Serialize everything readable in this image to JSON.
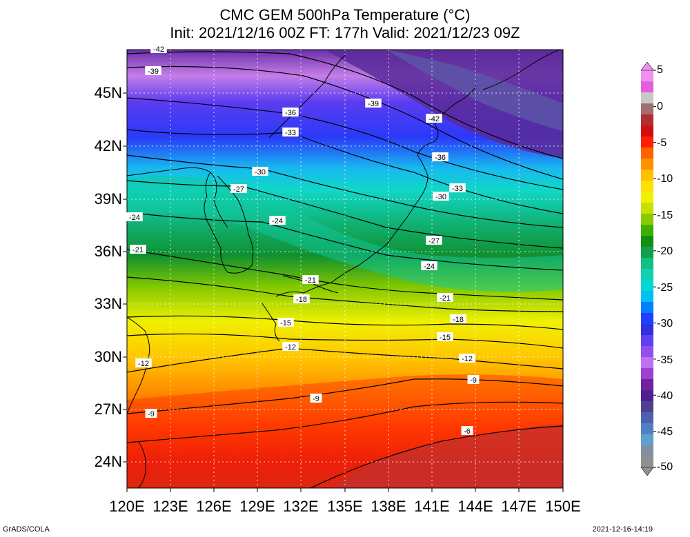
{
  "title": {
    "line1": "CMC GEM 500hPa Temperature (°C)",
    "line2": "Init: 2021/12/16 00Z  FT: 177h  Valid: 2021/12/23 09Z"
  },
  "axes": {
    "lat_labels": [
      "45N",
      "42N",
      "39N",
      "36N",
      "33N",
      "30N",
      "27N",
      "24N"
    ],
    "lon_labels": [
      "120E",
      "123E",
      "126E",
      "129E",
      "132E",
      "135E",
      "138E",
      "141E",
      "144E",
      "147E",
      "150E"
    ]
  },
  "colorbar": {
    "tick_labels": [
      "5",
      "0",
      "-5",
      "-10",
      "-15",
      "-20",
      "-25",
      "-30",
      "-35",
      "-40",
      "-45",
      "-50"
    ],
    "colors": [
      "#f090f0",
      "#e060e0",
      "#c8c8c8",
      "#a07070",
      "#b03030",
      "#d01010",
      "#ff2000",
      "#ff6000",
      "#ff9000",
      "#ffc000",
      "#ffe000",
      "#f0f000",
      "#c8e000",
      "#88cc00",
      "#40b000",
      "#109010",
      "#10a050",
      "#10c080",
      "#10d0b0",
      "#00d8d8",
      "#00c0f0",
      "#0080ff",
      "#2040ff",
      "#3030e0",
      "#6040f0",
      "#9050f0",
      "#c070f0",
      "#a040d0",
      "#7020a0",
      "#502090",
      "#504090",
      "#5060b0",
      "#5080c0",
      "#60a0d0",
      "#8090a0",
      "#909090"
    ]
  },
  "contour_labels": [
    {
      "text": "-42"
    },
    {
      "text": "-39"
    },
    {
      "text": "-36"
    },
    {
      "text": "-33"
    },
    {
      "text": "-39"
    },
    {
      "text": "-42"
    },
    {
      "text": "-36"
    },
    {
      "text": "-33"
    },
    {
      "text": "-30"
    },
    {
      "text": "-27"
    },
    {
      "text": "-30"
    },
    {
      "text": "-24"
    },
    {
      "text": "-24"
    },
    {
      "text": "-27"
    },
    {
      "text": "-21"
    },
    {
      "text": "-24"
    },
    {
      "text": "-21"
    },
    {
      "text": "-18"
    },
    {
      "text": "-21"
    },
    {
      "text": "-15"
    },
    {
      "text": "-18"
    },
    {
      "text": "-12"
    },
    {
      "text": "-15"
    },
    {
      "text": "-12"
    },
    {
      "text": "-12"
    },
    {
      "text": "-9"
    },
    {
      "text": "-9"
    },
    {
      "text": "-9"
    },
    {
      "text": "-6"
    }
  ],
  "footer": {
    "left": "GrADS/COLA",
    "right": "2021-12-16-14:19"
  }
}
